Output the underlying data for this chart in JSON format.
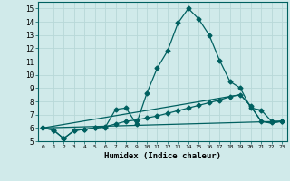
{
  "xlabel": "Humidex (Indice chaleur)",
  "background_color": "#d0eaea",
  "grid_color": "#b8d8d8",
  "line_color": "#006060",
  "xlim": [
    -0.5,
    23.5
  ],
  "ylim": [
    5.0,
    15.5
  ],
  "yticks": [
    5,
    6,
    7,
    8,
    9,
    10,
    11,
    12,
    13,
    14,
    15
  ],
  "xticks": [
    0,
    1,
    2,
    3,
    4,
    5,
    6,
    7,
    8,
    9,
    10,
    11,
    12,
    13,
    14,
    15,
    16,
    17,
    18,
    19,
    20,
    21,
    22,
    23
  ],
  "line1_x": [
    0,
    1,
    2,
    3,
    4,
    5,
    6,
    7,
    8,
    9,
    10,
    11,
    12,
    13,
    14,
    15,
    16,
    17,
    18,
    19,
    20,
    21,
    22,
    23
  ],
  "line1_y": [
    6.0,
    5.85,
    5.2,
    5.8,
    5.9,
    6.0,
    6.05,
    7.4,
    7.5,
    6.3,
    8.6,
    10.5,
    11.8,
    13.9,
    15.0,
    14.2,
    13.0,
    11.1,
    9.5,
    9.0,
    7.5,
    7.35,
    6.5,
    6.5
  ],
  "line2_x": [
    0,
    1,
    2,
    3,
    4,
    5,
    6,
    7,
    8,
    9,
    10,
    11,
    12,
    13,
    14,
    15,
    16,
    17,
    18,
    19,
    20,
    21,
    22,
    23
  ],
  "line2_y": [
    6.0,
    5.85,
    5.2,
    5.8,
    5.9,
    6.0,
    6.1,
    6.3,
    6.5,
    6.6,
    6.75,
    6.9,
    7.1,
    7.3,
    7.5,
    7.7,
    7.9,
    8.1,
    8.35,
    8.5,
    7.65,
    6.5,
    6.4,
    6.5
  ],
  "line3_x": [
    0,
    19,
    20,
    21,
    22,
    23
  ],
  "line3_y": [
    6.0,
    8.5,
    7.65,
    6.5,
    6.35,
    6.5
  ],
  "line4_x": [
    0,
    23
  ],
  "line4_y": [
    6.0,
    6.5
  ]
}
